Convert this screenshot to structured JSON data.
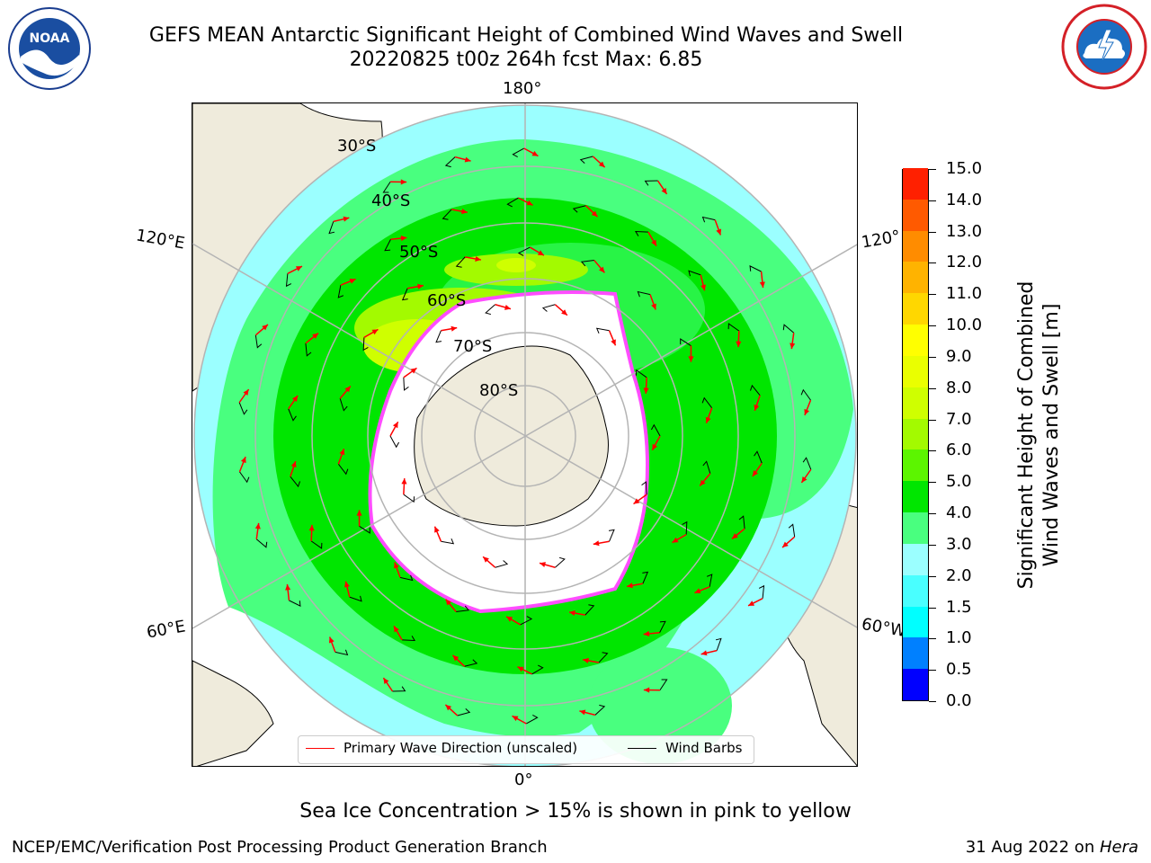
{
  "header": {
    "title_line1": "GEFS MEAN Antarctic Significant Height of Combined Wind Waves and Swell",
    "title_line2": "20220825 t00z 264h fcst   Max: 6.85"
  },
  "logos": {
    "left": "noaa-logo",
    "right": "national-weather-service-logo"
  },
  "map": {
    "projection": "south-polar-stereographic",
    "lon_labels": {
      "top": "180°",
      "bottom": "0°",
      "left_upper": "120°E",
      "left_lower": "60°E",
      "right_upper": "120°",
      "right_lower": "60°W"
    },
    "lat_labels": [
      "30°S",
      "40°S",
      "50°S",
      "60°S",
      "70°S",
      "80°S"
    ],
    "colors": {
      "land": "#efebdc",
      "ocean_low": "#9bffff",
      "ocean_mid": "#49ff7f",
      "ocean_high": "#00e600",
      "seaice": "#ff4dff",
      "grid": "#b4b4b4",
      "arrow": "#ff0000"
    }
  },
  "legend": {
    "primary_wave": "Primary Wave Direction (unscaled)",
    "wind_barbs": "Wind Barbs",
    "primary_wave_color": "#ff0000",
    "wind_barbs_color": "#000000"
  },
  "colorbar": {
    "label_line1": "Significant Height of Combined",
    "label_line2": "Wind Waves and Swell [m]",
    "ticks": [
      "0.0",
      "0.5",
      "1.0",
      "1.5",
      "2.0",
      "3.0",
      "4.0",
      "5.0",
      "6.0",
      "7.0",
      "8.0",
      "9.0",
      "10.0",
      "11.0",
      "12.0",
      "13.0",
      "14.0",
      "15.0"
    ],
    "colors": [
      "#0000ff",
      "#0080ff",
      "#00ffff",
      "#49ffff",
      "#9bffff",
      "#49ff7f",
      "#00e600",
      "#5cf500",
      "#a3fa00",
      "#cfff00",
      "#eaff00",
      "#ffff00",
      "#ffd700",
      "#ffb300",
      "#ff8c00",
      "#ff5a00",
      "#ff2000"
    ]
  },
  "caption": "Sea Ice Concentration > 15% is shown in pink to yellow",
  "footer": {
    "left": "NCEP/EMC/Verification Post Processing Product Generation Branch",
    "right_date": "31 Aug 2022 on ",
    "right_host": "Hera"
  }
}
